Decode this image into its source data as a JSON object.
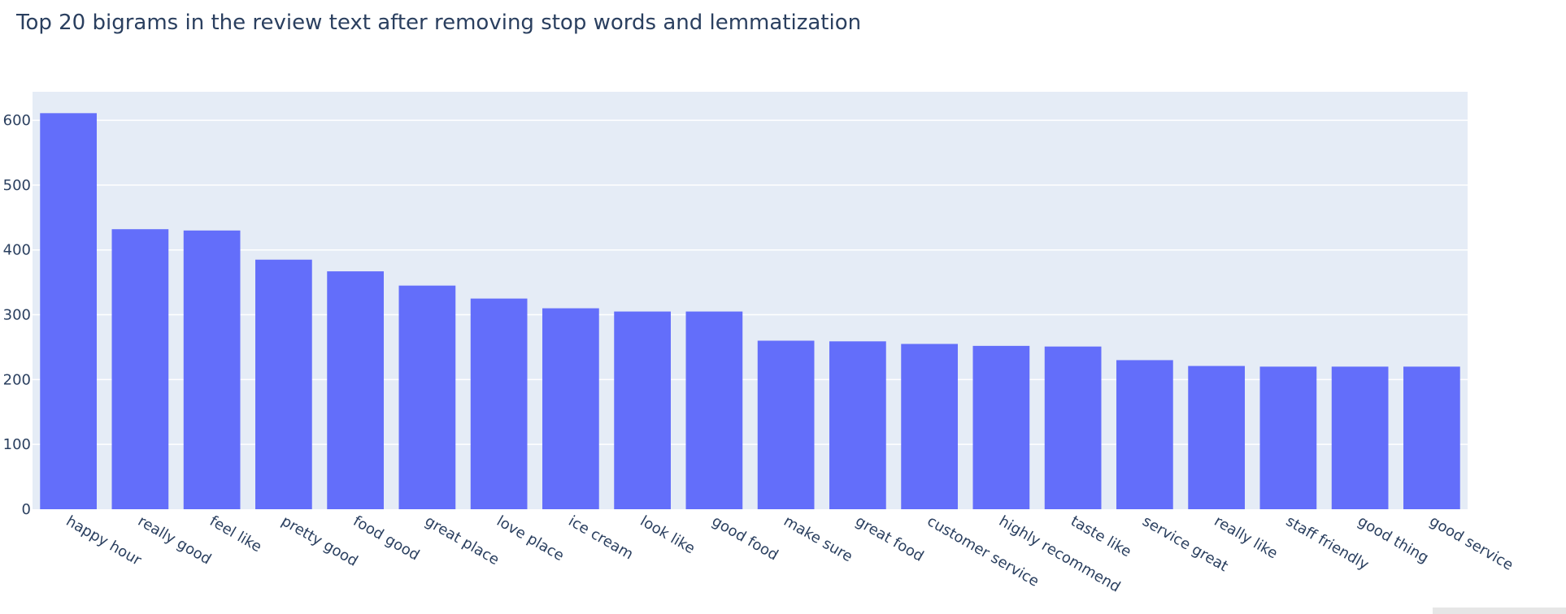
{
  "chart_data": {
    "type": "bar",
    "title": "Top 20 bigrams in the review text after removing stop words and lemmatization",
    "xlabel": "",
    "ylabel": "",
    "categories": [
      "happy hour",
      "really good",
      "feel like",
      "pretty good",
      "food good",
      "great place",
      "love place",
      "ice cream",
      "look like",
      "good food",
      "make sure",
      "great food",
      "customer service",
      "highly recommend",
      "taste like",
      "service great",
      "really like",
      "staff friendly",
      "good thing",
      "good service"
    ],
    "values": [
      611,
      432,
      430,
      385,
      367,
      345,
      325,
      310,
      305,
      305,
      260,
      259,
      255,
      252,
      251,
      230,
      221,
      220,
      220,
      220
    ],
    "ylim": [
      0,
      644
    ],
    "yticks": [
      0,
      100,
      200,
      300,
      400,
      500,
      600
    ],
    "bar_color": "#636efa",
    "plot_background": "#e5ecf6",
    "grid": true,
    "legend": false
  }
}
